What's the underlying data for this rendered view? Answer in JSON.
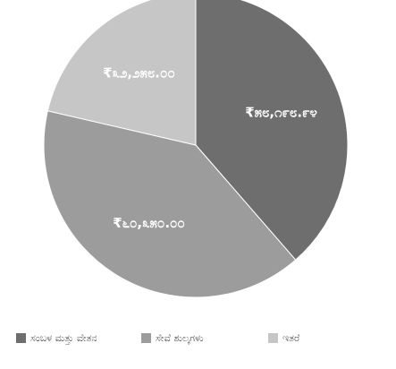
{
  "chart_data": {
    "type": "pie",
    "categories": [
      "ಸಂಬಳ ಮತ್ತು ವೇತನ",
      "ಸೇವೆ ಶುಲ್ಕಗಳು",
      "ಇತರೆ"
    ],
    "values": [
      58198.94,
      60350,
      32258
    ],
    "value_labels": [
      "₹೫೮,೧೯೮.೯೪",
      "₹೬೦,೩೫೦.೦೦",
      "₹೩೨,೨೫೮.೦೦"
    ],
    "colors": [
      "#6e6e6e",
      "#9c9c9c",
      "#c6c6c6"
    ]
  }
}
